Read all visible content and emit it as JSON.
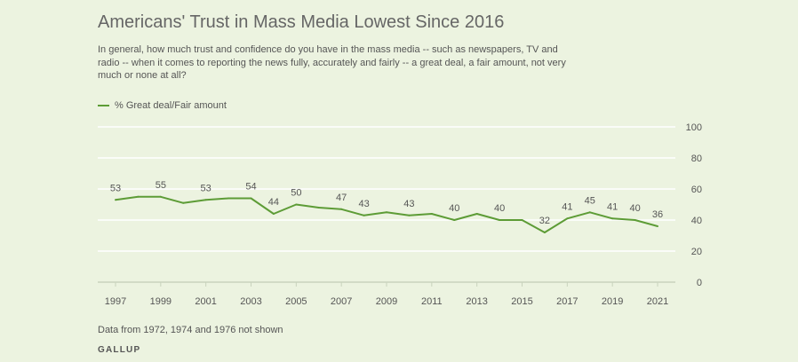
{
  "title": "Americans' Trust in Mass Media Lowest Since 2016",
  "subtitle": "In general, how much trust and confidence do you have in the mass media -- such as newspapers, TV and radio -- when it comes to reporting the news fully, accurately and fairly -- a great deal, a fair amount, not very much or none at all?",
  "footnote": "Data from 1972, 1974 and 1976 not shown",
  "source": "GALLUP",
  "colors": {
    "line": "#5d9c36",
    "grid": "#ffffff",
    "text": "#555555",
    "background": "#ecf3e0"
  },
  "chart_data": {
    "type": "line",
    "title": "Americans' Trust in Mass Media Lowest Since 2016",
    "xlabel": "",
    "ylabel": "",
    "ylim": [
      0,
      100
    ],
    "xlim": [
      1997,
      2021
    ],
    "grid": true,
    "legend_position": "top-left",
    "y_ticks": [
      0,
      20,
      40,
      60,
      80,
      100
    ],
    "x_ticks": [
      1997,
      1999,
      2001,
      2003,
      2005,
      2007,
      2009,
      2011,
      2013,
      2015,
      2017,
      2019,
      2021
    ],
    "series": [
      {
        "name": "% Great deal/Fair amount",
        "x": [
          1997,
          1998,
          1999,
          2000,
          2001,
          2002,
          2003,
          2004,
          2005,
          2006,
          2007,
          2008,
          2009,
          2010,
          2011,
          2012,
          2013,
          2014,
          2015,
          2016,
          2017,
          2018,
          2019,
          2020,
          2021
        ],
        "values": [
          53,
          55,
          55,
          51,
          53,
          54,
          54,
          44,
          50,
          48,
          47,
          43,
          45,
          43,
          44,
          40,
          44,
          40,
          40,
          32,
          41,
          45,
          41,
          40,
          36
        ],
        "labeled_x": [
          1997,
          1999,
          2001,
          2003,
          2004,
          2005,
          2007,
          2008,
          2010,
          2012,
          2014,
          2016,
          2017,
          2018,
          2019,
          2020,
          2021
        ]
      }
    ]
  }
}
